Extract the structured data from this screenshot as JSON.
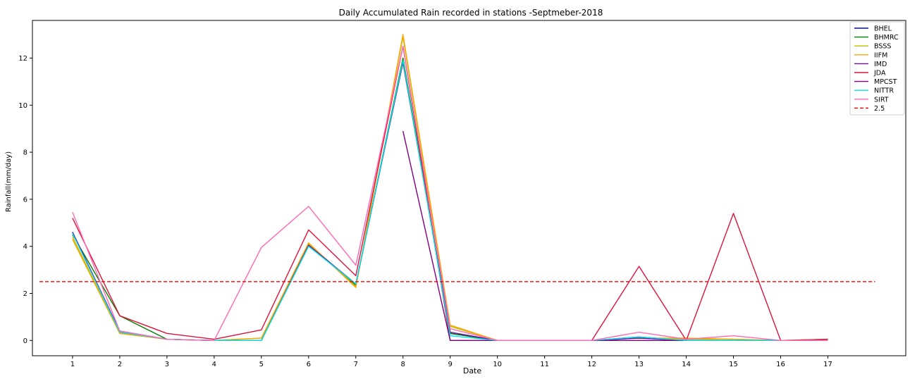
{
  "chart_data": {
    "type": "line",
    "title": "Daily Accumulated Rain recorded in stations -Septmeber-2018",
    "xlabel": "Date",
    "ylabel": "Rainfall(mm/day)",
    "x": [
      1,
      2,
      3,
      4,
      5,
      6,
      7,
      8,
      9,
      10,
      11,
      12,
      13,
      14,
      15,
      16,
      17
    ],
    "xticks": [
      "1",
      "2",
      "3",
      "4",
      "5",
      "6",
      "7",
      "8",
      "9",
      "10",
      "11",
      "12",
      "13",
      "14",
      "15",
      "16",
      "17"
    ],
    "yticks": [
      0,
      2,
      4,
      6,
      8,
      10,
      12
    ],
    "ytick_labels": [
      "0",
      "2",
      "4",
      "6",
      "8",
      "10",
      "12"
    ],
    "xlim": [
      0.15,
      18.65
    ],
    "ylim": [
      -0.65,
      13.6
    ],
    "legend_position": "top-right",
    "series": [
      {
        "name": "BHEL",
        "color": "#0000ff",
        "values": [
          4.6,
          0.35,
          0.05,
          0.0,
          0.0,
          4.05,
          2.4,
          11.9,
          0.3,
          0.0,
          0.0,
          0.0,
          0.15,
          0.0,
          0.0,
          0.0,
          0.0
        ]
      },
      {
        "name": "BHMRC",
        "color": "#008000",
        "values": [
          4.5,
          1.05,
          0.05,
          0.0,
          0.0,
          4.1,
          2.35,
          12.0,
          0.3,
          0.0,
          0.0,
          0.0,
          0.1,
          0.0,
          0.0,
          0.0,
          0.0
        ]
      },
      {
        "name": "BSSS",
        "color": "#bfbf00",
        "values": [
          4.3,
          0.3,
          0.05,
          0.0,
          0.1,
          4.1,
          2.3,
          12.9,
          0.6,
          0.0,
          0.0,
          0.0,
          0.1,
          0.05,
          0.05,
          0.0,
          0.05
        ]
      },
      {
        "name": "IIFM",
        "color": "#ffa500",
        "values": [
          4.4,
          0.3,
          0.05,
          0.0,
          0.1,
          4.15,
          2.25,
          13.0,
          0.65,
          0.0,
          0.0,
          0.0,
          0.1,
          0.1,
          0.05,
          0.0,
          0.05
        ]
      },
      {
        "name": "IMD",
        "color": "#6a0dad",
        "values": [
          4.6,
          0.4,
          0.05,
          0.0,
          0.0,
          4.05,
          2.4,
          11.8,
          0.35,
          0.0,
          0.0,
          0.0,
          0.1,
          0.0,
          0.0,
          0.0,
          0.0
        ]
      },
      {
        "name": "JDA",
        "color": "#dc143c",
        "values": [
          5.2,
          1.05,
          0.3,
          0.05,
          0.45,
          4.7,
          2.75,
          12.5,
          0.0,
          0.0,
          0.0,
          0.0,
          3.15,
          0.0,
          5.4,
          0.0,
          0.05
        ]
      },
      {
        "name": "MPCST",
        "color": "#800080",
        "values": [
          null,
          null,
          null,
          null,
          null,
          null,
          null,
          8.9,
          0.0,
          0.0,
          0.0,
          0.0,
          0.0,
          0.0,
          0.0,
          0.0,
          0.0
        ]
      },
      {
        "name": "NITTR",
        "color": "#00e5e5",
        "values": [
          4.55,
          0.35,
          0.05,
          0.0,
          0.0,
          4.0,
          2.4,
          11.9,
          0.2,
          0.0,
          0.0,
          0.0,
          0.15,
          0.0,
          0.0,
          0.0,
          0.0
        ]
      },
      {
        "name": "SIRT",
        "color": "#ff69b4",
        "values": [
          5.45,
          0.4,
          0.05,
          0.0,
          3.95,
          5.7,
          3.2,
          12.5,
          0.5,
          0.0,
          0.0,
          0.0,
          0.35,
          0.05,
          0.2,
          0.0,
          0.0
        ]
      }
    ],
    "reference_line": {
      "name": "2.5",
      "value": 2.5,
      "color": "#ff0000",
      "style": "dashed",
      "x_range": [
        0.3,
        18.0
      ]
    }
  }
}
